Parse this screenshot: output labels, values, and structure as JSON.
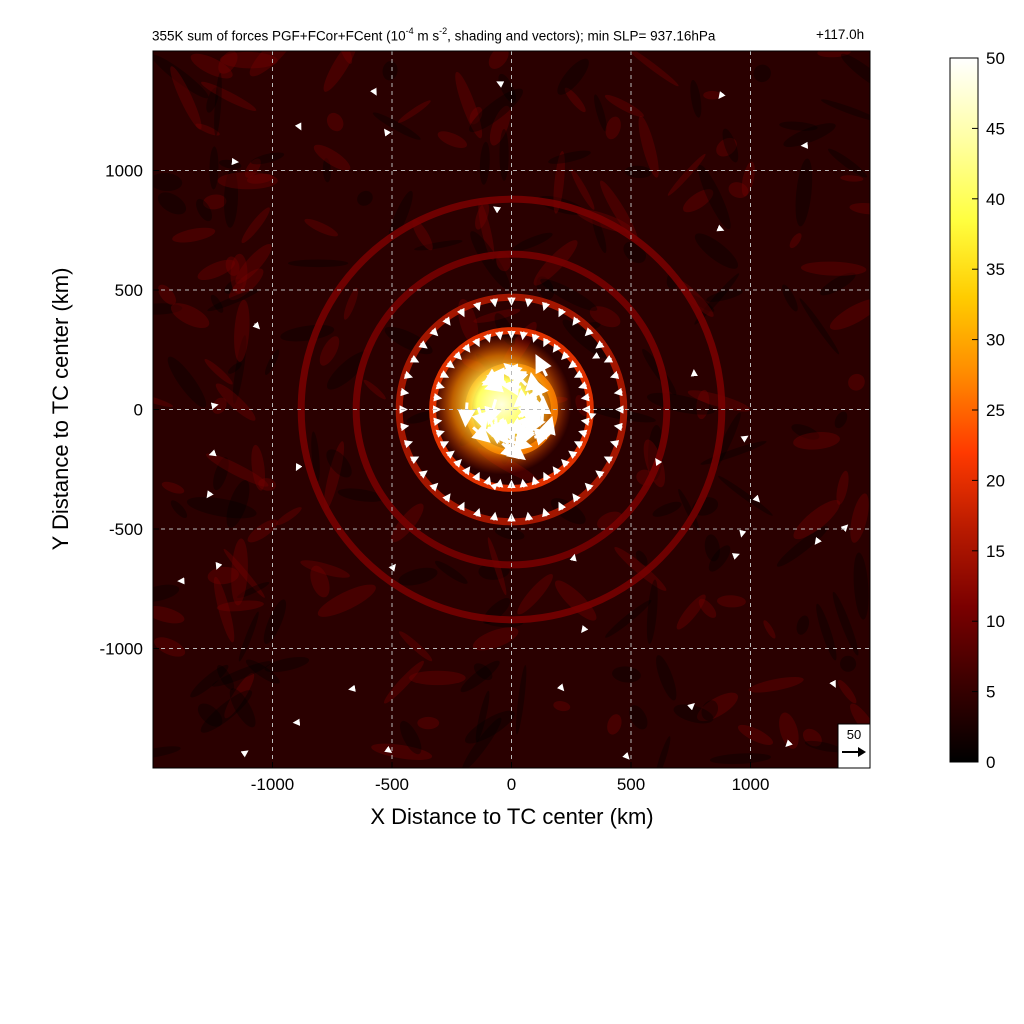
{
  "chart_data": {
    "type": "heatmap",
    "title_prefix": "355K sum of forces PGF+FCor+FCent (10",
    "title_exp1": "-4",
    "title_mid": " m s",
    "title_exp2": "-2",
    "title_suffix": ", shading and vectors); min SLP= 937.16hPa",
    "time_label": "+117.0h",
    "xlabel": "X Distance to TC center (km)",
    "ylabel": "Y Distance to TC center (km)",
    "xlim": [
      -1500,
      1500
    ],
    "ylim": [
      -1500,
      1500
    ],
    "x_ticks": [
      -1000,
      -500,
      0,
      500,
      1000
    ],
    "y_ticks": [
      -1000,
      -500,
      0,
      500,
      1000
    ],
    "grid": true,
    "colorbar": {
      "ticks": [
        0,
        5,
        10,
        15,
        20,
        25,
        30,
        35,
        40,
        45,
        50
      ],
      "range": [
        0,
        50
      ],
      "colors": [
        "#000000",
        "#3a0000",
        "#7a0000",
        "#b81a00",
        "#ff3a00",
        "#ff8a00",
        "#ffcc00",
        "#ffff40",
        "#ffffa0",
        "#ffffff"
      ]
    },
    "reference_vector": {
      "value": "50"
    },
    "rings_km": [
      {
        "r": 180,
        "intensity": 30
      },
      {
        "r": 330,
        "intensity": 22
      },
      {
        "r": 470,
        "intensity": 16
      },
      {
        "r": 650,
        "intensity": 12
      },
      {
        "r": 880,
        "intensity": 9
      }
    ]
  }
}
